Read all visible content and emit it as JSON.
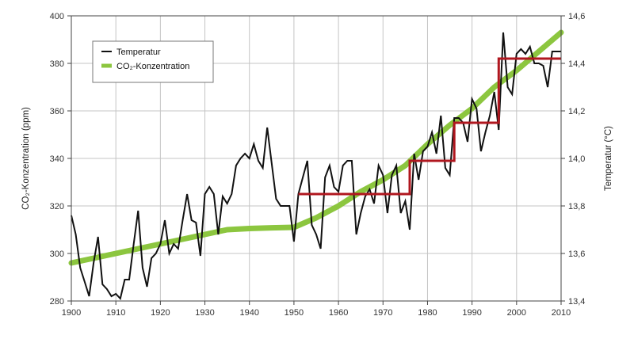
{
  "chart_data": {
    "type": "line",
    "x_ticks": [
      "1900",
      "1910",
      "1920",
      "1930",
      "1940",
      "1950",
      "1960",
      "1970",
      "1980",
      "1990",
      "2000",
      "2010"
    ],
    "xlim": [
      1900,
      2010
    ],
    "y_left": {
      "label": "CO₂-Konzentration (ppm)",
      "ticks": [
        "280",
        "300",
        "320",
        "340",
        "360",
        "380",
        "400"
      ],
      "lim": [
        280,
        400
      ]
    },
    "y_right": {
      "label": "Temperatur (°C)",
      "ticks": [
        "13,4",
        "13,6",
        "13,8",
        "14,0",
        "14,2",
        "14,4",
        "14,6"
      ],
      "lim": [
        13.4,
        14.6
      ]
    },
    "grid": true,
    "legend": {
      "placement": "top-left",
      "items": [
        {
          "label": "Temperatur",
          "color": "#111111"
        },
        {
          "label": "CO₂-Konzentration",
          "color": "#8cc63f"
        }
      ]
    },
    "series": [
      {
        "name": "Temperatur",
        "axis": "right",
        "color": "#111111",
        "x": [
          1900,
          1901,
          1902,
          1903,
          1904,
          1905,
          1906,
          1907,
          1908,
          1909,
          1910,
          1911,
          1912,
          1913,
          1914,
          1915,
          1916,
          1917,
          1918,
          1919,
          1920,
          1921,
          1922,
          1923,
          1924,
          1925,
          1926,
          1927,
          1928,
          1929,
          1930,
          1931,
          1932,
          1933,
          1934,
          1935,
          1936,
          1937,
          1938,
          1939,
          1940,
          1941,
          1942,
          1943,
          1944,
          1945,
          1946,
          1947,
          1948,
          1949,
          1950,
          1951,
          1952,
          1953,
          1954,
          1955,
          1956,
          1957,
          1958,
          1959,
          1960,
          1961,
          1962,
          1963,
          1964,
          1965,
          1966,
          1967,
          1968,
          1969,
          1970,
          1971,
          1972,
          1973,
          1974,
          1975,
          1976,
          1977,
          1978,
          1979,
          1980,
          1981,
          1982,
          1983,
          1984,
          1985,
          1986,
          1987,
          1988,
          1989,
          1990,
          1991,
          1992,
          1993,
          1994,
          1995,
          1996,
          1997,
          1998,
          1999,
          2000,
          2001,
          2002,
          2003,
          2004,
          2005,
          2006,
          2007,
          2008,
          2009,
          2010
        ],
        "y": [
          13.76,
          13.68,
          13.54,
          13.48,
          13.42,
          13.56,
          13.67,
          13.47,
          13.45,
          13.42,
          13.43,
          13.41,
          13.49,
          13.49,
          13.64,
          13.78,
          13.54,
          13.46,
          13.58,
          13.6,
          13.64,
          13.74,
          13.6,
          13.64,
          13.62,
          13.74,
          13.85,
          13.74,
          13.73,
          13.59,
          13.85,
          13.88,
          13.85,
          13.68,
          13.84,
          13.81,
          13.85,
          13.97,
          14.0,
          14.02,
          14.0,
          14.06,
          13.99,
          13.96,
          14.13,
          13.98,
          13.83,
          13.8,
          13.8,
          13.8,
          13.65,
          13.85,
          13.92,
          13.99,
          13.72,
          13.68,
          13.62,
          13.92,
          13.97,
          13.88,
          13.86,
          13.97,
          13.99,
          13.99,
          13.68,
          13.77,
          13.84,
          13.87,
          13.81,
          13.97,
          13.93,
          13.77,
          13.93,
          13.97,
          13.77,
          13.82,
          13.7,
          14.02,
          13.91,
          14.03,
          14.05,
          14.11,
          14.02,
          14.18,
          13.96,
          13.93,
          14.17,
          14.17,
          14.15,
          14.07,
          14.25,
          14.21,
          14.03,
          14.11,
          14.18,
          14.28,
          14.12,
          14.53,
          14.3,
          14.27,
          14.44,
          14.46,
          14.44,
          14.47,
          14.4,
          14.4,
          14.39,
          14.3,
          14.45,
          14.45,
          14.45
        ]
      },
      {
        "name": "CO₂-Konzentration",
        "axis": "left",
        "color": "#8cc63f",
        "x": [
          1900,
          1905,
          1910,
          1915,
          1920,
          1925,
          1930,
          1935,
          1940,
          1945,
          1950,
          1955,
          1960,
          1965,
          1970,
          1975,
          1980,
          1985,
          1990,
          1995,
          2000,
          2005,
          2010
        ],
        "y": [
          296,
          298,
          300,
          302,
          304,
          306,
          308,
          310,
          310.5,
          310.8,
          311,
          315,
          320,
          326,
          331,
          337,
          346,
          354,
          361,
          370,
          377,
          385,
          393
        ]
      },
      {
        "axis": "right",
        "color": "#b0171f",
        "x": [
          1951,
          1976,
          1976,
          1986,
          1986,
          1996,
          1996,
          2010
        ],
        "y": [
          13.85,
          13.85,
          13.99,
          13.99,
          14.15,
          14.15,
          14.42,
          14.42
        ]
      }
    ]
  }
}
